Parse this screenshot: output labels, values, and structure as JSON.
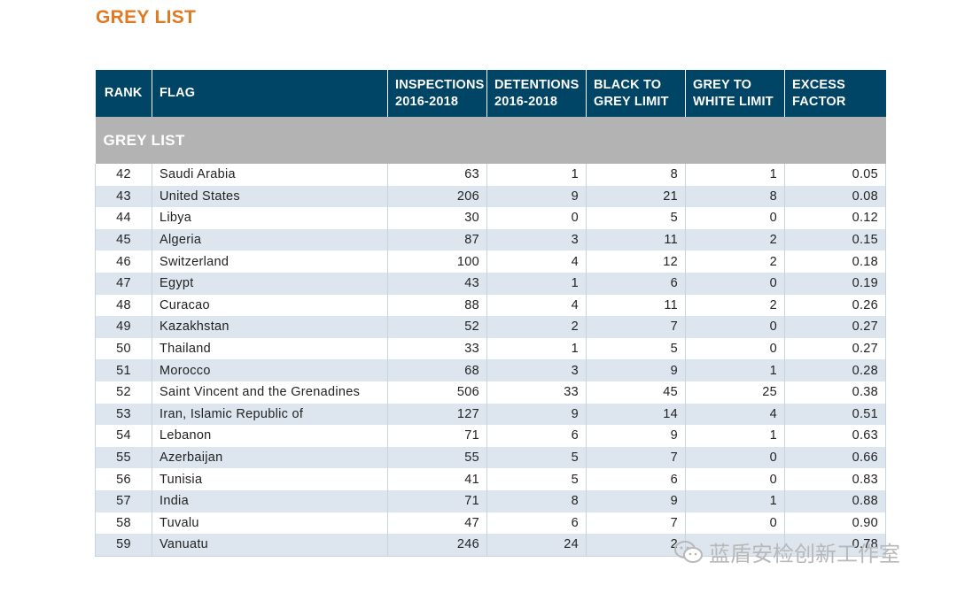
{
  "page_title": "GREY LIST",
  "header": {
    "rank": "RANK",
    "flag": "FLAG",
    "inspections": [
      "INSPECTIONS",
      "2016-2018"
    ],
    "detentions": [
      "DETENTIONS",
      "2016-2018"
    ],
    "black_to_grey": [
      "BLACK TO",
      "GREY LIMIT"
    ],
    "grey_to_white": [
      "GREY TO",
      "WHITE LIMIT"
    ],
    "excess_factor": [
      "EXCESS",
      "FACTOR"
    ]
  },
  "section_label": "GREY LIST",
  "rows": [
    [
      "42",
      "Saudi Arabia",
      "63",
      "1",
      "8",
      "1",
      "0.05"
    ],
    [
      "43",
      "United States",
      "206",
      "9",
      "21",
      "8",
      "0.08"
    ],
    [
      "44",
      "Libya",
      "30",
      "0",
      "5",
      "0",
      "0.12"
    ],
    [
      "45",
      "Algeria",
      "87",
      "3",
      "11",
      "2",
      "0.15"
    ],
    [
      "46",
      "Switzerland",
      "100",
      "4",
      "12",
      "2",
      "0.18"
    ],
    [
      "47",
      "Egypt",
      "43",
      "1",
      "6",
      "0",
      "0.19"
    ],
    [
      "48",
      "Curacao",
      "88",
      "4",
      "11",
      "2",
      "0.26"
    ],
    [
      "49",
      "Kazakhstan",
      "52",
      "2",
      "7",
      "0",
      "0.27"
    ],
    [
      "50",
      "Thailand",
      "33",
      "1",
      "5",
      "0",
      "0.27"
    ],
    [
      "51",
      "Morocco",
      "68",
      "3",
      "9",
      "1",
      "0.28"
    ],
    [
      "52",
      "Saint Vincent and the Grenadines",
      "506",
      "33",
      "45",
      "25",
      "0.38"
    ],
    [
      "53",
      "Iran, Islamic Republic of",
      "127",
      "9",
      "14",
      "4",
      "0.51"
    ],
    [
      "54",
      "Lebanon",
      "71",
      "6",
      "9",
      "1",
      "0.63"
    ],
    [
      "55",
      "Azerbaijan",
      "55",
      "5",
      "7",
      "0",
      "0.66"
    ],
    [
      "56",
      "Tunisia",
      "41",
      "5",
      "6",
      "0",
      "0.83"
    ],
    [
      "57",
      "India",
      "71",
      "8",
      "9",
      "1",
      "0.88"
    ],
    [
      "58",
      "Tuvalu",
      "47",
      "6",
      "7",
      "0",
      "0.90"
    ],
    [
      "59",
      "Vanuatu",
      "246",
      "24",
      "2",
      "",
      "0.78"
    ]
  ],
  "watermark_text": "蓝盾安检创新工作室",
  "colors": {
    "title": "#e07a22",
    "header_bg": "#004466",
    "section_bg": "#b3b3b3",
    "stripe": "#dde6ef"
  }
}
